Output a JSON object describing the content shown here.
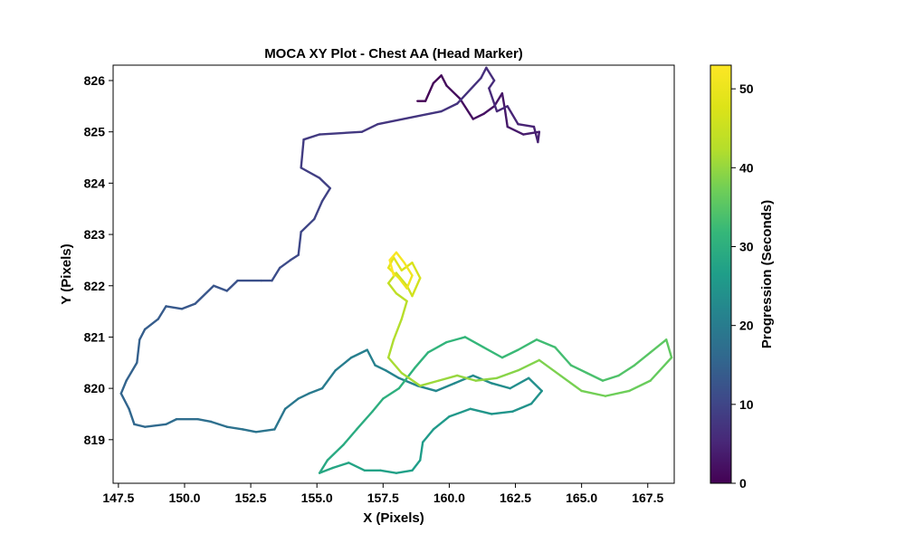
{
  "chart_data": {
    "type": "line",
    "title": "MOCA XY Plot - Chest AA (Head Marker)",
    "xlabel": "X (Pixels)",
    "ylabel": "Y (Pixels)",
    "xlim": [
      147.3,
      168.5
    ],
    "ylim": [
      818.15,
      826.3
    ],
    "x_ticks": [
      147.5,
      150.0,
      152.5,
      155.0,
      157.5,
      160.0,
      162.5,
      165.0,
      167.5
    ],
    "x_tick_labels": [
      "147.5",
      "150.0",
      "152.5",
      "155.0",
      "157.5",
      "160.0",
      "162.5",
      "165.0",
      "167.5"
    ],
    "y_ticks": [
      819,
      820,
      821,
      822,
      823,
      824,
      825,
      826
    ],
    "y_tick_labels": [
      "819",
      "820",
      "821",
      "822",
      "823",
      "824",
      "825",
      "826"
    ],
    "grid": false,
    "colormap": "viridis",
    "colorbar": {
      "label": "Progression (Seconds)",
      "range": [
        0,
        53
      ],
      "ticks": [
        0,
        10,
        20,
        30,
        40,
        50
      ],
      "tick_labels": [
        "0",
        "10",
        "20",
        "30",
        "40",
        "50"
      ]
    },
    "trajectory": [
      [
        158.8,
        825.6,
        0
      ],
      [
        159.1,
        825.6,
        0.3
      ],
      [
        159.4,
        825.95,
        0.6
      ],
      [
        159.7,
        826.1,
        0.9
      ],
      [
        159.9,
        825.9,
        1.2
      ],
      [
        160.4,
        825.65,
        1.5
      ],
      [
        160.9,
        825.25,
        1.8
      ],
      [
        161.3,
        825.35,
        2.1
      ],
      [
        161.7,
        825.5,
        2.4
      ],
      [
        162.0,
        825.75,
        2.7
      ],
      [
        162.1,
        825.45,
        3.0
      ],
      [
        162.2,
        825.1,
        3.3
      ],
      [
        162.8,
        824.95,
        3.6
      ],
      [
        163.4,
        825.0,
        3.9
      ],
      [
        163.35,
        824.8,
        4.2
      ],
      [
        163.2,
        825.1,
        4.5
      ],
      [
        162.6,
        825.15,
        4.8
      ],
      [
        162.2,
        825.5,
        5.1
      ],
      [
        161.8,
        825.4,
        5.4
      ],
      [
        161.5,
        825.85,
        5.7
      ],
      [
        161.7,
        826.0,
        6.0
      ],
      [
        161.4,
        826.25,
        6.3
      ],
      [
        161.2,
        826.05,
        6.6
      ],
      [
        160.3,
        825.55,
        6.9
      ],
      [
        159.7,
        825.4,
        7.2
      ],
      [
        157.3,
        825.15,
        7.5
      ],
      [
        156.7,
        825.0,
        7.8
      ],
      [
        155.1,
        824.95,
        8.1
      ],
      [
        154.5,
        824.85,
        8.4
      ],
      [
        154.4,
        824.3,
        8.7
      ],
      [
        155.1,
        824.1,
        9.0
      ],
      [
        155.5,
        823.9,
        9.3
      ],
      [
        155.2,
        823.65,
        9.6
      ],
      [
        154.9,
        823.3,
        9.9
      ],
      [
        154.4,
        823.05,
        10.2
      ],
      [
        154.3,
        822.6,
        10.5
      ],
      [
        154.0,
        822.5,
        10.8
      ],
      [
        153.6,
        822.35,
        11.1
      ],
      [
        153.3,
        822.1,
        11.4
      ],
      [
        152.9,
        822.1,
        11.7
      ],
      [
        152.0,
        822.1,
        12.0
      ],
      [
        151.6,
        821.9,
        12.3
      ],
      [
        151.1,
        822.0,
        12.6
      ],
      [
        150.4,
        821.65,
        12.9
      ],
      [
        149.9,
        821.55,
        13.2
      ],
      [
        149.3,
        821.6,
        13.5
      ],
      [
        149.0,
        821.35,
        13.8
      ],
      [
        148.5,
        821.15,
        14.1
      ],
      [
        148.3,
        820.95,
        14.4
      ],
      [
        148.2,
        820.5,
        14.7
      ],
      [
        147.8,
        820.15,
        15.0
      ],
      [
        147.6,
        819.9,
        15.3
      ],
      [
        147.9,
        819.6,
        15.6
      ],
      [
        148.1,
        819.3,
        15.9
      ],
      [
        148.5,
        819.25,
        16.2
      ],
      [
        149.3,
        819.3,
        16.5
      ],
      [
        149.7,
        819.4,
        16.8
      ],
      [
        150.5,
        819.4,
        17.1
      ],
      [
        151.0,
        819.35,
        17.4
      ],
      [
        151.6,
        819.25,
        17.7
      ],
      [
        152.2,
        819.2,
        18.0
      ],
      [
        152.7,
        819.15,
        18.3
      ],
      [
        153.4,
        819.2,
        18.6
      ],
      [
        153.8,
        819.6,
        18.9
      ],
      [
        154.3,
        819.8,
        19.2
      ],
      [
        154.7,
        819.9,
        19.5
      ],
      [
        155.2,
        820.0,
        19.8
      ],
      [
        155.7,
        820.35,
        20.1
      ],
      [
        156.3,
        820.6,
        20.4
      ],
      [
        156.9,
        820.75,
        20.7
      ],
      [
        157.2,
        820.45,
        21.0
      ],
      [
        157.6,
        820.35,
        21.3
      ],
      [
        158.1,
        820.2,
        21.6
      ],
      [
        158.8,
        820.05,
        21.9
      ],
      [
        159.5,
        819.95,
        22.2
      ],
      [
        160.2,
        820.1,
        22.5
      ],
      [
        160.9,
        820.25,
        22.8
      ],
      [
        161.6,
        820.1,
        23.1
      ],
      [
        162.3,
        820.0,
        23.4
      ],
      [
        163.0,
        820.2,
        23.7
      ],
      [
        163.5,
        819.95,
        24.0
      ],
      [
        163.1,
        819.7,
        24.3
      ],
      [
        162.4,
        819.55,
        24.6
      ],
      [
        161.6,
        819.5,
        24.9
      ],
      [
        160.8,
        819.6,
        25.2
      ],
      [
        160.0,
        819.45,
        25.5
      ],
      [
        159.4,
        819.2,
        25.8
      ],
      [
        159.0,
        818.95,
        26.1
      ],
      [
        158.9,
        818.6,
        26.4
      ],
      [
        158.6,
        818.4,
        26.7
      ],
      [
        158.0,
        818.35,
        27.0
      ],
      [
        157.4,
        818.4,
        27.3
      ],
      [
        156.8,
        818.4,
        27.6
      ],
      [
        156.2,
        818.55,
        27.9
      ],
      [
        155.6,
        818.45,
        28.2
      ],
      [
        155.1,
        818.35,
        28.5
      ],
      [
        155.4,
        818.6,
        28.8
      ],
      [
        156.0,
        818.9,
        29.1
      ],
      [
        156.5,
        819.2,
        29.4
      ],
      [
        157.1,
        819.55,
        29.7
      ],
      [
        157.5,
        819.8,
        30.0
      ],
      [
        158.1,
        820.0,
        30.3
      ],
      [
        158.7,
        820.4,
        30.6
      ],
      [
        159.2,
        820.7,
        30.9
      ],
      [
        159.9,
        820.9,
        31.2
      ],
      [
        160.6,
        821.0,
        31.5
      ],
      [
        161.3,
        820.8,
        31.8
      ],
      [
        162.0,
        820.6,
        32.1
      ],
      [
        162.6,
        820.75,
        32.4
      ],
      [
        163.3,
        820.95,
        32.7
      ],
      [
        164.0,
        820.8,
        33.0
      ],
      [
        164.6,
        820.45,
        33.3
      ],
      [
        165.2,
        820.3,
        33.6
      ],
      [
        165.8,
        820.15,
        34.0
      ],
      [
        166.4,
        820.25,
        34.4
      ],
      [
        167.0,
        820.45,
        34.8
      ],
      [
        167.6,
        820.7,
        35.2
      ],
      [
        168.2,
        820.95,
        35.6
      ],
      [
        168.4,
        820.6,
        36.0
      ],
      [
        167.6,
        820.15,
        36.4
      ],
      [
        166.8,
        819.95,
        36.8
      ],
      [
        165.9,
        819.85,
        37.2
      ],
      [
        165.0,
        819.95,
        37.6
      ],
      [
        164.2,
        820.25,
        38.0
      ],
      [
        163.4,
        820.55,
        38.4
      ],
      [
        162.6,
        820.35,
        38.8
      ],
      [
        161.8,
        820.2,
        39.2
      ],
      [
        161.0,
        820.15,
        39.6
      ],
      [
        160.3,
        820.25,
        40.0
      ],
      [
        159.6,
        820.15,
        40.4
      ],
      [
        158.9,
        820.05,
        40.8
      ],
      [
        158.2,
        820.3,
        41.2
      ],
      [
        157.7,
        820.6,
        41.6
      ],
      [
        157.9,
        820.95,
        42.0
      ],
      [
        158.2,
        821.35,
        42.5
      ],
      [
        158.4,
        821.7,
        43.0
      ],
      [
        158.0,
        821.85,
        43.6
      ],
      [
        157.7,
        822.05,
        44.2
      ],
      [
        158.0,
        822.25,
        44.8
      ],
      [
        158.4,
        822.0,
        45.4
      ],
      [
        158.6,
        821.8,
        46.0
      ],
      [
        158.9,
        822.15,
        46.6
      ],
      [
        158.6,
        822.45,
        47.2
      ],
      [
        158.2,
        822.3,
        47.8
      ],
      [
        157.9,
        822.55,
        48.4
      ],
      [
        157.7,
        822.35,
        49.0
      ],
      [
        158.1,
        822.15,
        49.6
      ],
      [
        158.4,
        821.95,
        50.2
      ],
      [
        158.6,
        822.2,
        50.8
      ],
      [
        158.3,
        822.45,
        51.4
      ],
      [
        158.0,
        822.65,
        52.0
      ],
      [
        157.75,
        822.5,
        52.6
      ],
      [
        157.9,
        822.2,
        53.0
      ]
    ]
  }
}
